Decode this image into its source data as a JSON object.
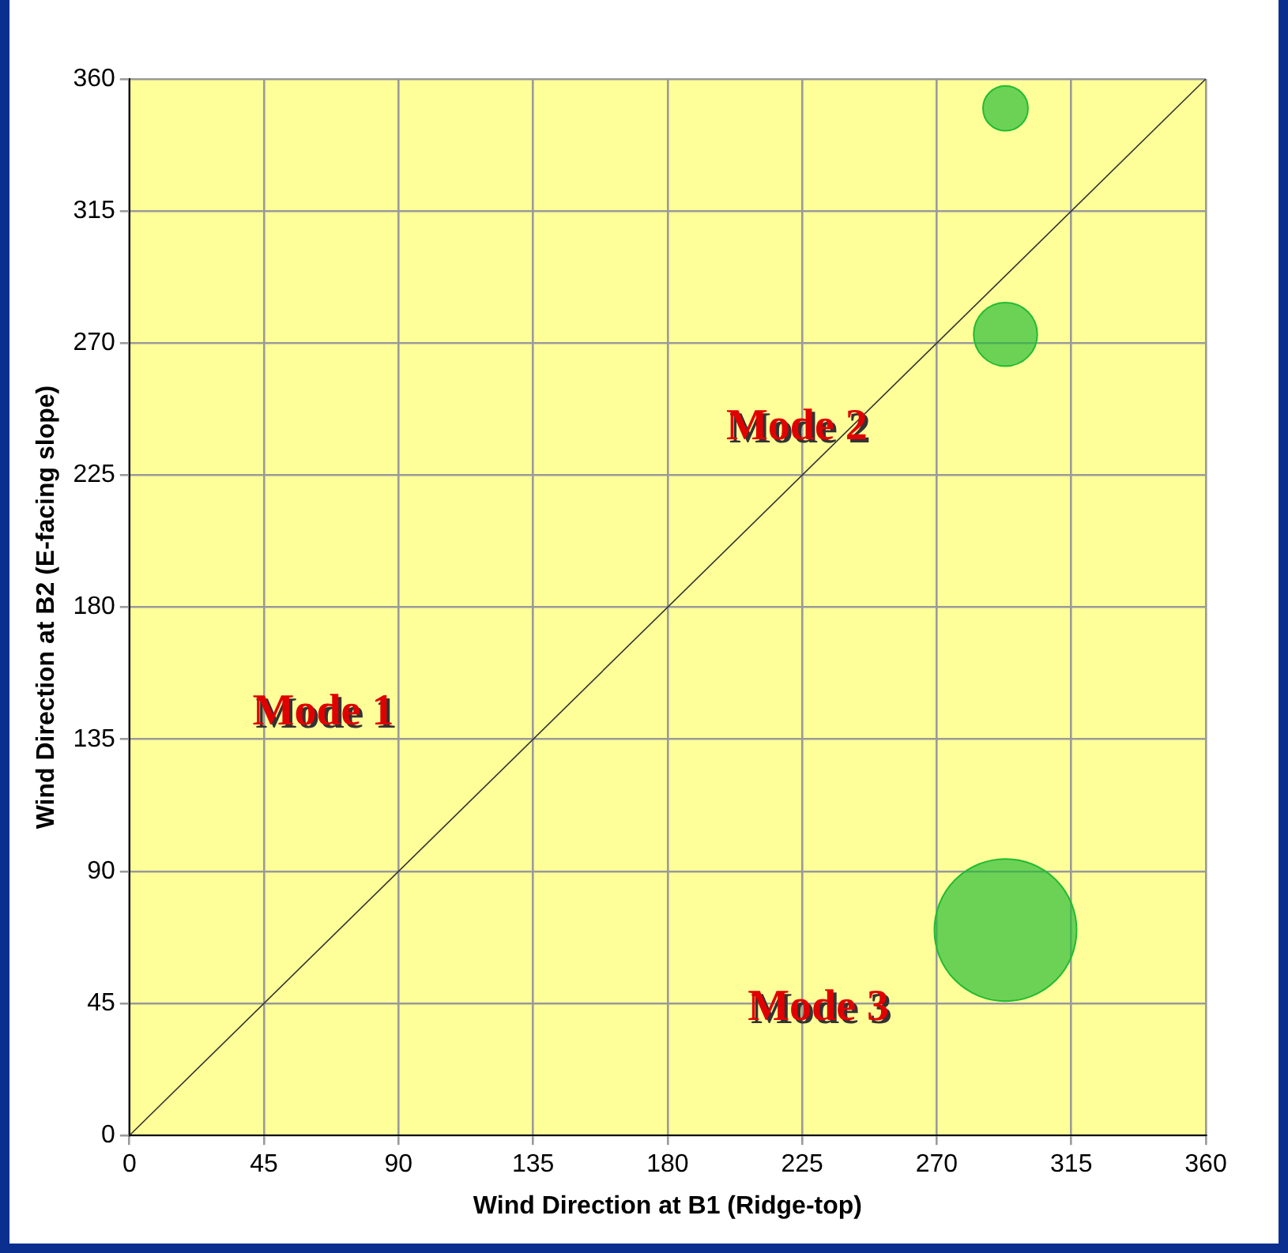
{
  "chart_data": {
    "type": "bubble",
    "xlabel": "Wind Direction at B1 (Ridge-top)",
    "ylabel": "Wind Direction at B2 (E-facing slope)",
    "xlim": [
      0,
      360
    ],
    "ylim": [
      0,
      360
    ],
    "xticks": [
      0,
      45,
      90,
      135,
      180,
      225,
      270,
      315,
      360
    ],
    "yticks": [
      0,
      45,
      90,
      135,
      180,
      225,
      270,
      315,
      360
    ],
    "grid": true,
    "series": [
      {
        "type": "line",
        "color": "#333333",
        "x": [
          0,
          360
        ],
        "values": [
          0,
          360
        ]
      },
      {
        "color": "#22bb33",
        "x": [
          293,
          293,
          293
        ],
        "values": [
          70,
          273,
          350
        ],
        "sizes": [
          1,
          0.2,
          0.1
        ]
      }
    ],
    "annotations": [
      "Mode 1",
      "Mode 2",
      "Mode 3"
    ]
  }
}
